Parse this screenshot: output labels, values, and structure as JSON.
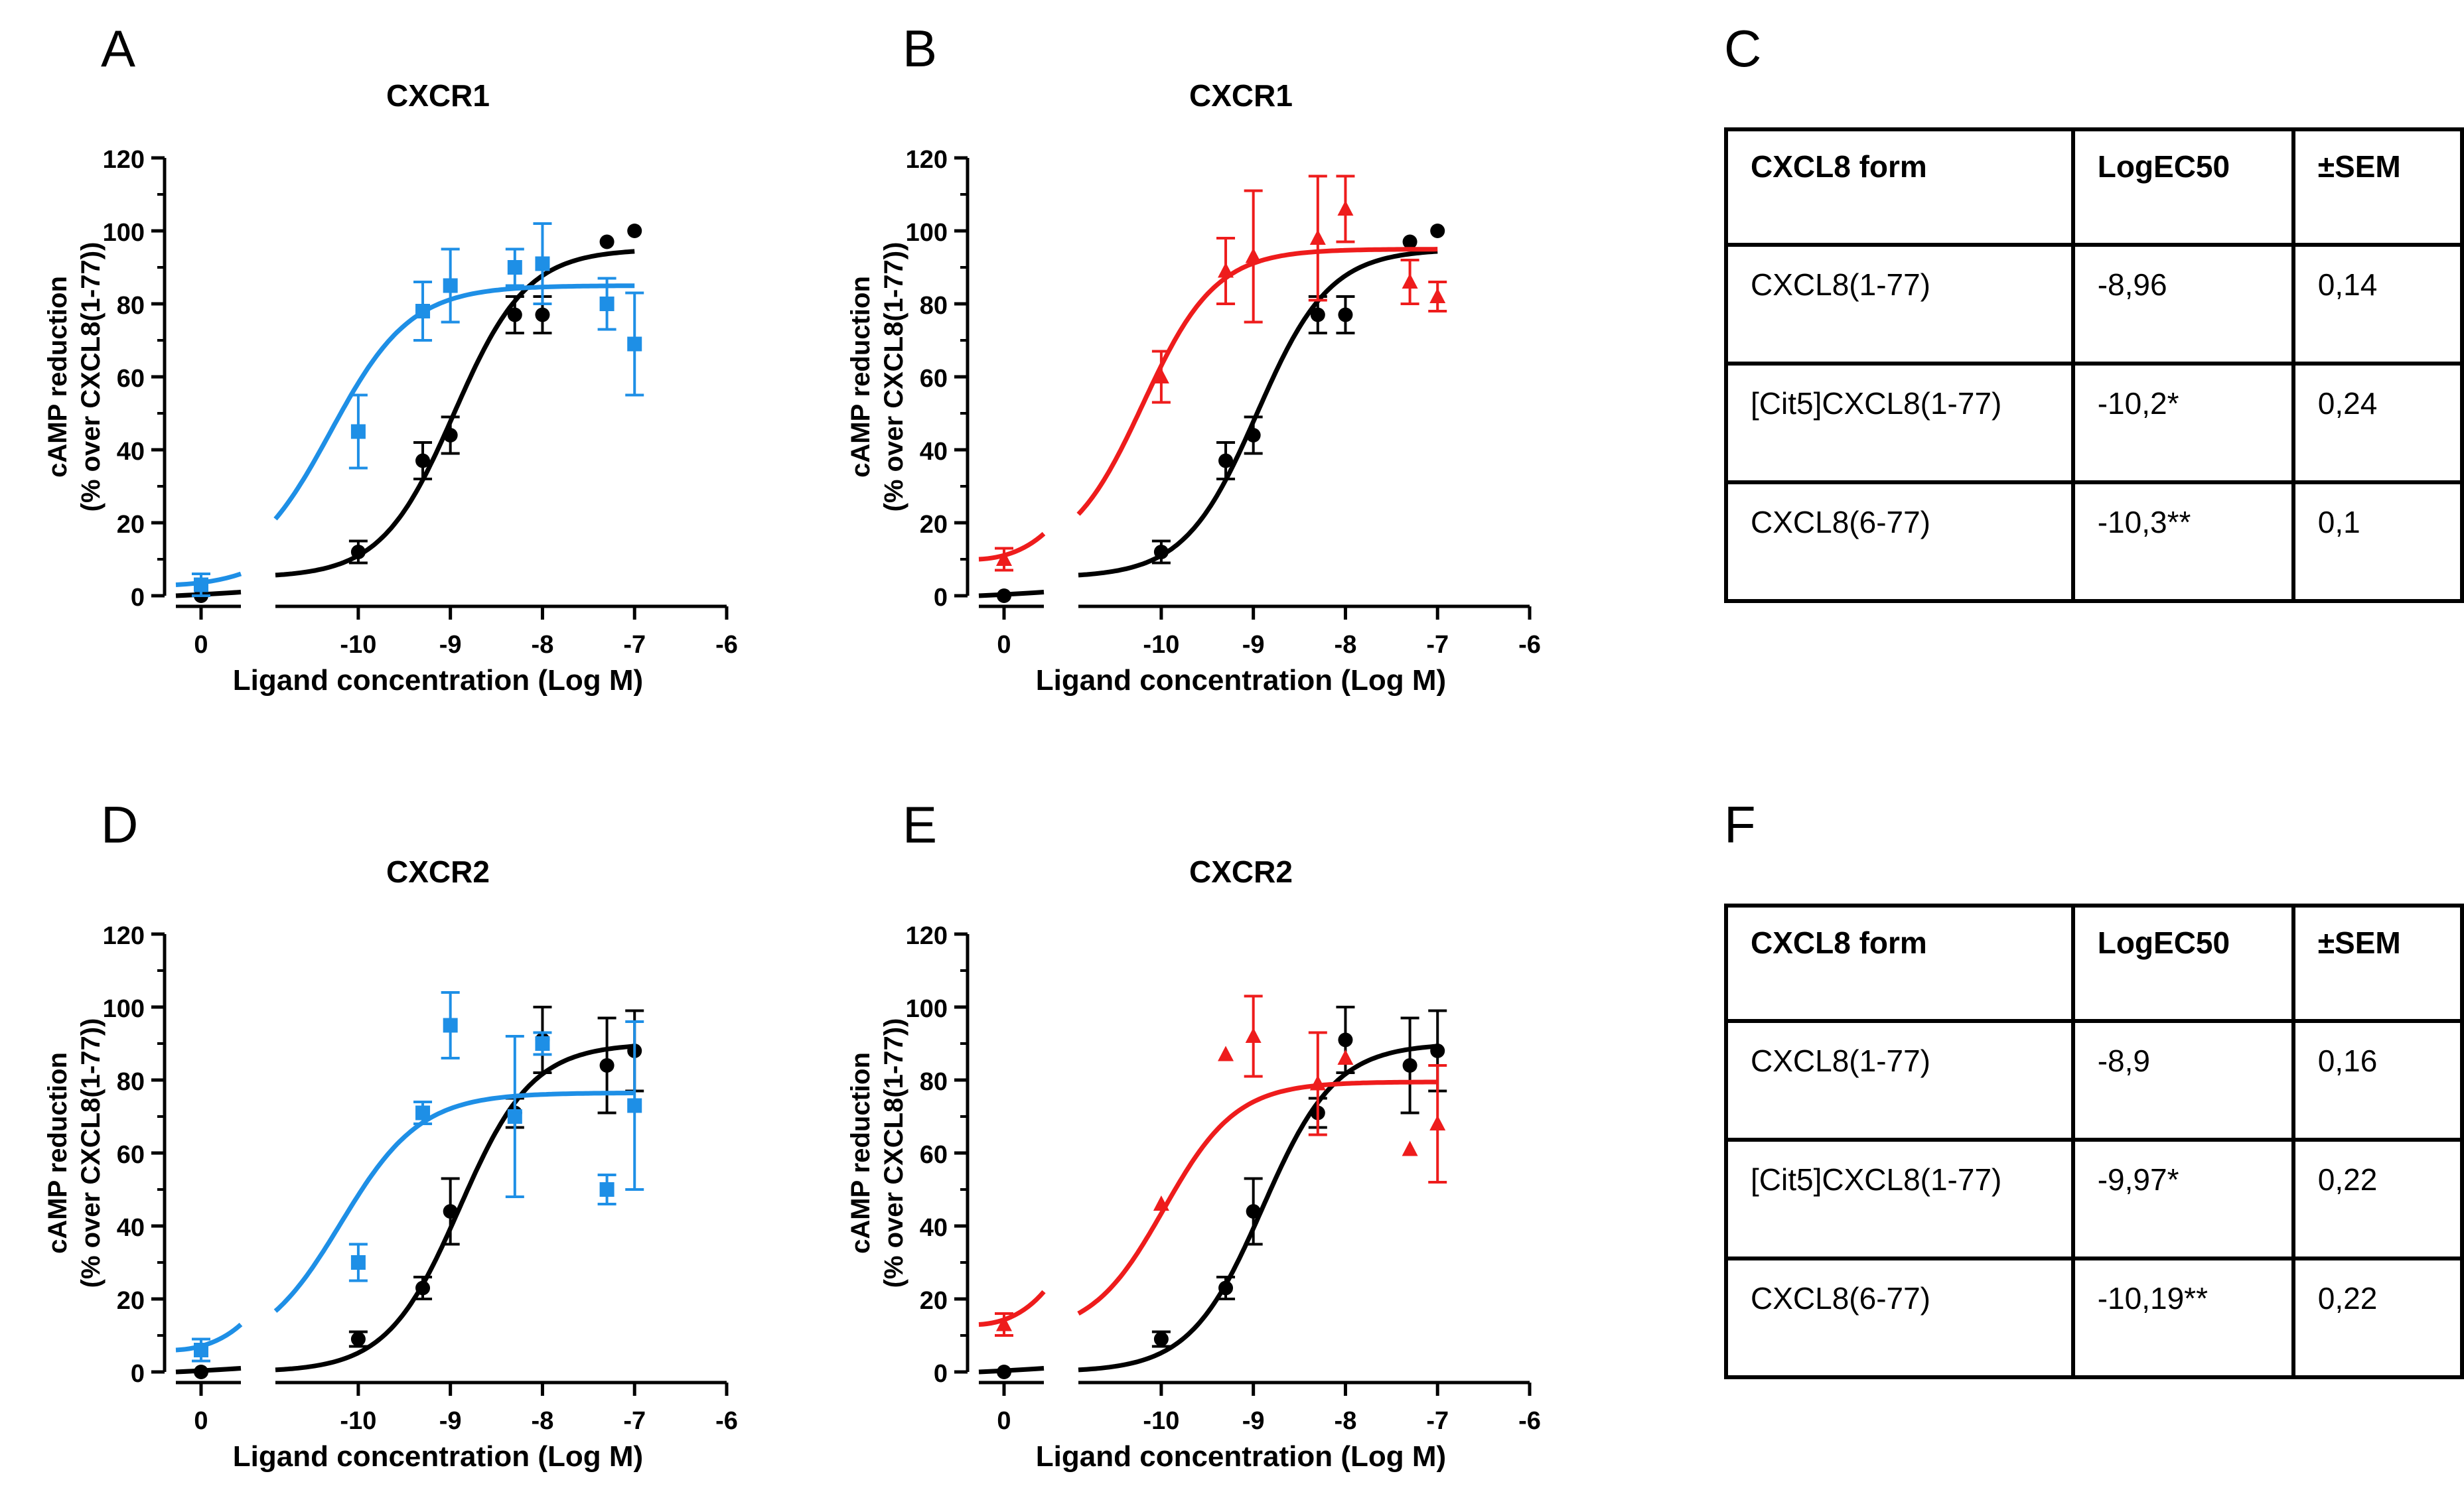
{
  "panel_labels": {
    "A": "A",
    "B": "B",
    "C": "C",
    "D": "D",
    "E": "E",
    "F": "F"
  },
  "colors": {
    "control": "#000000",
    "cit5": "#ee1c1c",
    "cxcl8_6_77": "#1e8fe6"
  },
  "chart_data": [
    {
      "id": "A",
      "type": "scatter",
      "title": "CXCR1",
      "xlabel": "Ligand concentration (Log M)",
      "ylabel_line1": "cAMP reduction",
      "ylabel_line2": "(% over CXCL8(1-77))",
      "ylim": [
        0,
        120
      ],
      "yticks": [
        "0",
        "20",
        "40",
        "60",
        "80",
        "100",
        "120"
      ],
      "xlim": [
        -10.9,
        -6
      ],
      "xticks": [
        "-10",
        "-9",
        "-8",
        "-7",
        "-6"
      ],
      "x_zero_tick": "0",
      "series": [
        {
          "name": "CXCL8(1-77)",
          "color": "#000000",
          "marker": "circle",
          "logEC50": -8.96,
          "bottom": 5,
          "top": 95,
          "hill": 1.1,
          "zero": [
            0,
            1
          ],
          "points": [
            {
              "x": -10,
              "y": 12,
              "err": 3
            },
            {
              "x": -9.3,
              "y": 37,
              "err": 5
            },
            {
              "x": -9,
              "y": 44,
              "err": 5
            },
            {
              "x": -8.3,
              "y": 77,
              "err": 5
            },
            {
              "x": -8,
              "y": 77,
              "err": 5
            },
            {
              "x": -7.3,
              "y": 97,
              "err": 0
            },
            {
              "x": -7,
              "y": 100,
              "err": 0
            }
          ]
        },
        {
          "name": "CXCL8(6-77)",
          "color": "#1e8fe6",
          "marker": "square",
          "logEC50": -10.3,
          "bottom": 5,
          "top": 85,
          "hill": 1.0,
          "zero": [
            3,
            3
          ],
          "points": [
            {
              "x": -10,
              "y": 45,
              "err": 10
            },
            {
              "x": -9.3,
              "y": 78,
              "err": 8
            },
            {
              "x": -9,
              "y": 85,
              "err": 10
            },
            {
              "x": -8.3,
              "y": 90,
              "err": 5
            },
            {
              "x": -8,
              "y": 91,
              "err": 11
            },
            {
              "x": -7.3,
              "y": 80,
              "err": 7
            },
            {
              "x": -7,
              "y": 69,
              "err": 14
            }
          ]
        }
      ]
    },
    {
      "id": "B",
      "type": "scatter",
      "title": "CXCR1",
      "xlabel": "Ligand concentration (Log M)",
      "ylabel_line1": "cAMP reduction",
      "ylabel_line2": "(% over CXCL8(1-77))",
      "ylim": [
        0,
        120
      ],
      "yticks": [
        "0",
        "20",
        "40",
        "60",
        "80",
        "100",
        "120"
      ],
      "xlim": [
        -10.9,
        -6
      ],
      "xticks": [
        "-10",
        "-9",
        "-8",
        "-7",
        "-6"
      ],
      "x_zero_tick": "0",
      "series": [
        {
          "name": "CXCL8(1-77)",
          "color": "#000000",
          "marker": "circle",
          "logEC50": -8.96,
          "bottom": 5,
          "top": 95,
          "hill": 1.1,
          "zero": [
            0,
            1
          ],
          "points": [
            {
              "x": -10,
              "y": 12,
              "err": 3
            },
            {
              "x": -9.3,
              "y": 37,
              "err": 5
            },
            {
              "x": -9,
              "y": 44,
              "err": 5
            },
            {
              "x": -8.3,
              "y": 77,
              "err": 5
            },
            {
              "x": -8,
              "y": 77,
              "err": 5
            },
            {
              "x": -7.3,
              "y": 97,
              "err": 0
            },
            {
              "x": -7,
              "y": 100,
              "err": 0
            }
          ]
        },
        {
          "name": "[Cit5]CXCL8(1-77)",
          "color": "#ee1c1c",
          "marker": "triangle",
          "logEC50": -10.2,
          "bottom": 10,
          "top": 95,
          "hill": 1.1,
          "zero": [
            10,
            7
          ],
          "points": [
            {
              "x": -10,
              "y": 60,
              "err": 7
            },
            {
              "x": -9.3,
              "y": 89,
              "err": 9
            },
            {
              "x": -9,
              "y": 93,
              "err": 18
            },
            {
              "x": -8.3,
              "y": 98,
              "err": 17
            },
            {
              "x": -8,
              "y": 106,
              "err": 9
            },
            {
              "x": -7.3,
              "y": 86,
              "err": 6
            },
            {
              "x": -7,
              "y": 82,
              "err": 4
            }
          ]
        }
      ]
    },
    {
      "id": "D",
      "type": "scatter",
      "title": "CXCR2",
      "xlabel": "Ligand concentration (Log M)",
      "ylabel_line1": "cAMP reduction",
      "ylabel_line2": "(% over CXCL8(1-77))",
      "ylim": [
        0,
        120
      ],
      "yticks": [
        "0",
        "20",
        "40",
        "60",
        "80",
        "100",
        "120"
      ],
      "xlim": [
        -10.9,
        -6
      ],
      "xticks": [
        "-10",
        "-9",
        "-8",
        "-7",
        "-6"
      ],
      "x_zero_tick": "0",
      "series": [
        {
          "name": "CXCL8(1-77)",
          "color": "#000000",
          "marker": "circle",
          "logEC50": -8.9,
          "bottom": 0,
          "top": 90,
          "hill": 1.1,
          "zero": [
            0,
            1
          ],
          "points": [
            {
              "x": -10,
              "y": 9,
              "err": 2
            },
            {
              "x": -9.3,
              "y": 23,
              "err": 3
            },
            {
              "x": -9,
              "y": 44,
              "err": 9
            },
            {
              "x": -8.3,
              "y": 71,
              "err": 4
            },
            {
              "x": -8,
              "y": 91,
              "err": 9
            },
            {
              "x": -7.3,
              "y": 84,
              "err": 13
            },
            {
              "x": -7,
              "y": 88,
              "err": 11
            }
          ]
        },
        {
          "name": "CXCL8(6-77)",
          "color": "#1e8fe6",
          "marker": "square",
          "logEC50": -10.19,
          "bottom": 5,
          "top": 76.5,
          "hill": 1.0,
          "zero": [
            6,
            7
          ],
          "points": [
            {
              "x": -10,
              "y": 30,
              "err": 5
            },
            {
              "x": -9.3,
              "y": 71,
              "err": 3
            },
            {
              "x": -9,
              "y": 95,
              "err": 9
            },
            {
              "x": -8.3,
              "y": 70,
              "err": 22
            },
            {
              "x": -8,
              "y": 90,
              "err": 3
            },
            {
              "x": -7.3,
              "y": 50,
              "err": 4
            },
            {
              "x": -7,
              "y": 73,
              "err": 23
            }
          ]
        }
      ]
    },
    {
      "id": "E",
      "type": "scatter",
      "title": "CXCR2",
      "xlabel": "Ligand concentration (Log M)",
      "ylabel_line1": "cAMP reduction",
      "ylabel_line2": "(% over CXCL8(1-77))",
      "ylim": [
        0,
        120
      ],
      "yticks": [
        "0",
        "20",
        "40",
        "60",
        "80",
        "100",
        "120"
      ],
      "xlim": [
        -10.9,
        -6
      ],
      "xticks": [
        "-10",
        "-9",
        "-8",
        "-7",
        "-6"
      ],
      "x_zero_tick": "0",
      "series": [
        {
          "name": "CXCL8(1-77)",
          "color": "#000000",
          "marker": "circle",
          "logEC50": -8.9,
          "bottom": 0,
          "top": 90,
          "hill": 1.1,
          "zero": [
            0,
            1
          ],
          "points": [
            {
              "x": -10,
              "y": 9,
              "err": 2
            },
            {
              "x": -9.3,
              "y": 23,
              "err": 3
            },
            {
              "x": -9,
              "y": 44,
              "err": 9
            },
            {
              "x": -8.3,
              "y": 71,
              "err": 4
            },
            {
              "x": -8,
              "y": 91,
              "err": 9
            },
            {
              "x": -7.3,
              "y": 84,
              "err": 13
            },
            {
              "x": -7,
              "y": 88,
              "err": 11
            }
          ]
        },
        {
          "name": "[Cit5]CXCL8(1-77)",
          "color": "#ee1c1c",
          "marker": "triangle",
          "logEC50": -9.97,
          "bottom": 10,
          "top": 79.5,
          "hill": 1.1,
          "zero": [
            13,
            9
          ],
          "points": [
            {
              "x": -10,
              "y": 46,
              "err": 0
            },
            {
              "x": -9.3,
              "y": 87,
              "err": 0
            },
            {
              "x": -9,
              "y": 92,
              "err": 11
            },
            {
              "x": -8.3,
              "y": 79,
              "err": 14
            },
            {
              "x": -8,
              "y": 86,
              "err": 0
            },
            {
              "x": -7.3,
              "y": 61,
              "err": 0
            },
            {
              "x": -7,
              "y": 68,
              "err": 16
            }
          ]
        }
      ]
    }
  ],
  "tables": {
    "C": {
      "headers": [
        "CXCL8 form",
        "LogEC50",
        "±SEM"
      ],
      "rows": [
        [
          "CXCL8(1-77)",
          "-8,96",
          "0,14"
        ],
        [
          "[Cit5]CXCL8(1-77)",
          "-10,2*",
          "0,24"
        ],
        [
          "CXCL8(6-77)",
          "-10,3**",
          "0,1"
        ]
      ]
    },
    "F": {
      "headers": [
        "CXCL8 form",
        "LogEC50",
        "±SEM"
      ],
      "rows": [
        [
          "CXCL8(1-77)",
          "-8,9",
          "0,16"
        ],
        [
          "[Cit5]CXCL8(1-77)",
          "-9,97*",
          "0,22"
        ],
        [
          "CXCL8(6-77)",
          "-10,19**",
          "0,22"
        ]
      ]
    }
  }
}
